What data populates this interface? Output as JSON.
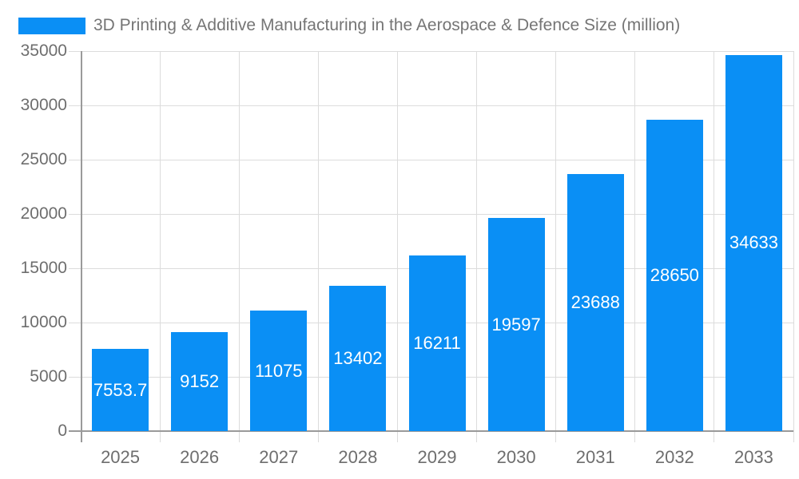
{
  "colors": {
    "bar": "#0A8FF5",
    "title_text": "#757575",
    "axis_text": "#6E6E6E",
    "grid": "#DCDCDC",
    "axis_line": "#9A9A9A",
    "value_label_text": "#FFFFFF"
  },
  "chart_data": {
    "type": "bar",
    "title": "3D Printing & Additive Manufacturing in the Aerospace & Defence Size (million)",
    "categories": [
      "2025",
      "2026",
      "2027",
      "2028",
      "2029",
      "2030",
      "2031",
      "2032",
      "2033"
    ],
    "values": [
      7553.7,
      9152,
      11075,
      13402,
      16211,
      19597,
      23688,
      28650,
      34633
    ],
    "xlabel": "",
    "ylabel": "",
    "ylim": [
      0,
      35000
    ],
    "ytick_step": 5000,
    "yticks": [
      0,
      5000,
      10000,
      15000,
      20000,
      25000,
      30000,
      35000
    ],
    "grid": true,
    "legend_position": "top-left",
    "value_labels": "inside-center-white"
  }
}
